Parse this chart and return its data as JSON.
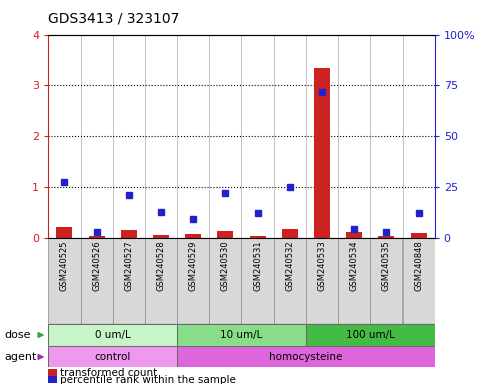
{
  "title": "GDS3413 / 323107",
  "samples": [
    "GSM240525",
    "GSM240526",
    "GSM240527",
    "GSM240528",
    "GSM240529",
    "GSM240530",
    "GSM240531",
    "GSM240532",
    "GSM240533",
    "GSM240534",
    "GSM240535",
    "GSM240848"
  ],
  "transformed_count": [
    0.22,
    0.05,
    0.15,
    0.07,
    0.08,
    0.13,
    0.05,
    0.18,
    3.35,
    0.12,
    0.05,
    0.1
  ],
  "percentile_rank": [
    27.5,
    3.0,
    21.0,
    13.0,
    9.5,
    22.0,
    12.5,
    25.0,
    72.0,
    4.5,
    3.0,
    12.5
  ],
  "dose_groups": [
    {
      "label": "0 um/L",
      "start": 0,
      "end": 4,
      "color": "#c8f5c8"
    },
    {
      "label": "10 um/L",
      "start": 4,
      "end": 8,
      "color": "#99e699"
    },
    {
      "label": "100 um/L",
      "start": 8,
      "end": 12,
      "color": "#55cc55"
    }
  ],
  "agent_groups": [
    {
      "label": "control",
      "start": 0,
      "end": 4,
      "color": "#ee99ee"
    },
    {
      "label": "homocysteine",
      "start": 4,
      "end": 12,
      "color": "#dd66dd"
    }
  ],
  "ylim_left": [
    0,
    4
  ],
  "ylim_right": [
    0,
    100
  ],
  "yticks_left": [
    0,
    1,
    2,
    3,
    4
  ],
  "yticks_right": [
    0,
    25,
    50,
    75,
    100
  ],
  "yticklabels_right": [
    "0",
    "25",
    "50",
    "75",
    "100%"
  ],
  "red_color": "#cc2222",
  "blue_color": "#2222cc",
  "marker_size": 5,
  "label_bg": "#d8d8d8",
  "dose_colors": [
    "#c8f5c8",
    "#88dd88",
    "#44bb44"
  ],
  "agent_colors": [
    "#ee99ee",
    "#dd66dd"
  ]
}
